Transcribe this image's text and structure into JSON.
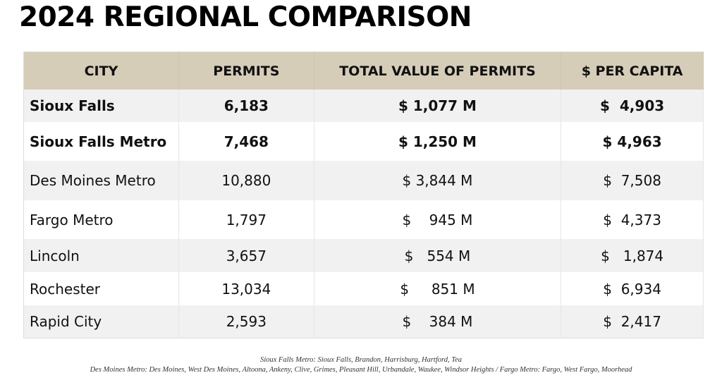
{
  "title": "2024 REGIONAL COMPARISON",
  "columns": [
    "CITY",
    "PERMITS",
    "TOTAL VALUE OF PERMITS",
    "$ PER CAPITA"
  ],
  "rows": [
    {
      "city": "Sioux Falls",
      "permits": "6,183",
      "total": "$ 1,077 M",
      "per_capita": "$  4,903",
      "bold": true
    },
    {
      "city": "Sioux Falls Metro",
      "permits": "7,468",
      "total": "$ 1,250 M",
      "per_capita": "$ 4,963",
      "bold": true
    },
    {
      "city": "Des Moines Metro",
      "permits": "10,880",
      "total": "$ 3,844 M",
      "per_capita": "$  7,508"
    },
    {
      "city": "Fargo Metro",
      "permits": "1,797",
      "total": "$    945 M",
      "per_capita": "$  4,373"
    },
    {
      "city": "Lincoln",
      "permits": "3,657",
      "total": "$   554 M",
      "per_capita": "$   1,874"
    },
    {
      "city": "Rochester",
      "permits": "13,034",
      "total": "$     851 M",
      "per_capita": "$  6,934"
    },
    {
      "city": "Rapid City",
      "permits": "2,593",
      "total": "$    384 M",
      "per_capita": "$  2,417"
    }
  ],
  "footnotes": [
    "Sioux Falls Metro: Sioux Falls, Brandon, Harrisburg, Hartford, Tea",
    "Des Moines Metro: Des Moines, West Des Moines, Altoona, Ankeny, Clive, Grimes, Pleasant Hill, Urbandale, Waukee, Windsor Heights  /  Fargo Metro: Fargo, West Fargo, Moorhead"
  ]
}
